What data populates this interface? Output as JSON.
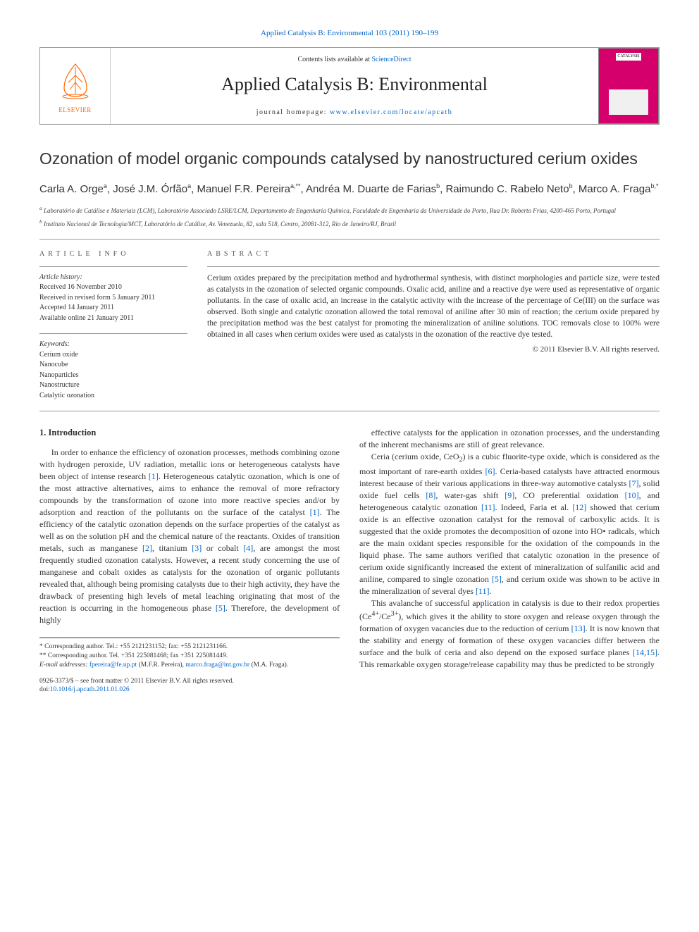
{
  "topLink": {
    "journal": "Applied Catalysis B: Environmental",
    "issue": "103 (2011) 190–199"
  },
  "card": {
    "contentsPrefix": "Contents lists available at ",
    "contentsLink": "ScienceDirect",
    "journalTitle": "Applied Catalysis B: Environmental",
    "homepagePrefix": "journal homepage: ",
    "homepageUrl": "www.elsevier.com/locate/apcatb",
    "publisherName": "ELSEVIER",
    "publisherColor": "#ff6600",
    "coverColor": "#d6006c",
    "coverBadge": "CATALYSIS"
  },
  "article": {
    "title": "Ozonation of model organic compounds catalysed by nanostructured cerium oxides",
    "authorsHtml": "Carla A. Orge<sup>a</sup>, José J.M. Órfão<sup>a</sup>, Manuel F.R. Pereira<sup>a,**</sup>, Andréa M. Duarte de Farias<sup>b</sup>, Raimundo C. Rabelo Neto<sup>b</sup>, Marco A. Fraga<sup>b,*</sup>",
    "affiliations": [
      "a Laboratório de Catálise e Materiais (LCM), Laboratório Associado LSRE/LCM, Departamento de Engenharia Química, Faculdade de Engenharia da Universidade do Porto, Rua Dr. Roberto Frias, 4200-465 Porto, Portugal",
      "b Instituto Nacional de Tecnologia/MCT, Laboratório de Catálise, Av. Venezuela, 82, sala 518, Centro, 20081-312, Rio de Janeiro/RJ, Brazil"
    ]
  },
  "info": {
    "sectionLabel": "article info",
    "historyHead": "Article history:",
    "history": [
      "Received 16 November 2010",
      "Received in revised form 5 January 2011",
      "Accepted 14 January 2011",
      "Available online 21 January 2011"
    ],
    "keywordsHead": "Keywords:",
    "keywords": [
      "Cerium oxide",
      "Nanocube",
      "Nanoparticles",
      "Nanostructure",
      "Catalytic ozonation"
    ]
  },
  "abstract": {
    "sectionLabel": "abstract",
    "text": "Cerium oxides prepared by the precipitation method and hydrothermal synthesis, with distinct morphologies and particle size, were tested as catalysts in the ozonation of selected organic compounds. Oxalic acid, aniline and a reactive dye were used as representative of organic pollutants. In the case of oxalic acid, an increase in the catalytic activity with the increase of the percentage of Ce(III) on the surface was observed. Both single and catalytic ozonation allowed the total removal of aniline after 30 min of reaction; the cerium oxide prepared by the precipitation method was the best catalyst for promoting the mineralization of aniline solutions. TOC removals close to 100% were obtained in all cases when cerium oxides were used as catalysts in the ozonation of the reactive dye tested.",
    "copyright": "© 2011 Elsevier B.V. All rights reserved."
  },
  "body": {
    "heading": "1. Introduction",
    "leftParas": [
      "In order to enhance the efficiency of ozonation processes, methods combining ozone with hydrogen peroxide, UV radiation, metallic ions or heterogeneous catalysts have been object of intense research <a class='ref' href='#'>[1]</a>. Heterogeneous catalytic ozonation, which is one of the most attractive alternatives, aims to enhance the removal of more refractory compounds by the transformation of ozone into more reactive species and/or by adsorption and reaction of the pollutants on the surface of the catalyst <a class='ref' href='#'>[1]</a>. The efficiency of the catalytic ozonation depends on the surface properties of the catalyst as well as on the solution pH and the chemical nature of the reactants. Oxides of transition metals, such as manganese <a class='ref' href='#'>[2]</a>, titanium <a class='ref' href='#'>[3]</a> or cobalt <a class='ref' href='#'>[4]</a>, are amongst the most frequently studied ozonation catalysts. However, a recent study concerning the use of manganese and cobalt oxides as catalysts for the ozonation of organic pollutants revealed that, although being promising catalysts due to their high activity, they have the drawback of presenting high levels of metal leaching originating that most of the reaction is occurring in the homogeneous phase <a class='ref' href='#'>[5]</a>. Therefore, the development of highly"
    ],
    "rightParas": [
      "effective catalysts for the application in ozonation processes, and the understanding of the inherent mechanisms are still of great relevance.",
      "Ceria (cerium oxide, CeO<sub>2</sub>) is a cubic fluorite-type oxide, which is considered as the most important of rare-earth oxides <a class='ref' href='#'>[6]</a>. Ceria-based catalysts have attracted enormous interest because of their various applications in three-way automotive catalysts <a class='ref' href='#'>[7]</a>, solid oxide fuel cells <a class='ref' href='#'>[8]</a>, water-gas shift <a class='ref' href='#'>[9]</a>, CO preferential oxidation <a class='ref' href='#'>[10]</a>, and heterogeneous catalytic ozonation <a class='ref' href='#'>[11]</a>. Indeed, Faria et al. <a class='ref' href='#'>[12]</a> showed that cerium oxide is an effective ozonation catalyst for the removal of carboxylic acids. It is suggested that the oxide promotes the decomposition of ozone into HO• radicals, which are the main oxidant species responsible for the oxidation of the compounds in the liquid phase. The same authors verified that catalytic ozonation in the presence of cerium oxide significantly increased the extent of mineralization of sulfanilic acid and aniline, compared to single ozonation <a class='ref' href='#'>[5]</a>, and cerium oxide was shown to be active in the mineralization of several dyes <a class='ref' href='#'>[11]</a>.",
      "This avalanche of successful application in catalysis is due to their redox properties (Ce<sup>4+</sup>/Ce<sup>3+</sup>), which gives it the ability to store oxygen and release oxygen through the formation of oxygen vacancies due to the reduction of cerium <a class='ref' href='#'>[13]</a>. It is now known that the stability and energy of formation of these oxygen vacancies differ between the surface and the bulk of ceria and also depend on the exposed surface planes <a class='ref' href='#'>[14,15]</a>. This remarkable oxygen storage/release capability may thus be predicted to be strongly"
    ]
  },
  "footnotes": {
    "corr1": "* Corresponding author. Tel.: +55 2121231152; fax: +55 2121231166.",
    "corr2": "** Corresponding author. Tel. +351 225081468; fax +351 225081449.",
    "emailsLabel": "E-mail addresses:",
    "email1": "fpereira@fe.up.pt",
    "email1who": "(M.F.R. Pereira),",
    "email2": "marco.fraga@int.gov.br",
    "email2who": "(M.A. Fraga)."
  },
  "frontmatter": {
    "issn": "0926-3373/$ – see front matter © 2011 Elsevier B.V. All rights reserved.",
    "doiLabel": "doi:",
    "doi": "10.1016/j.apcatb.2011.01.026"
  }
}
